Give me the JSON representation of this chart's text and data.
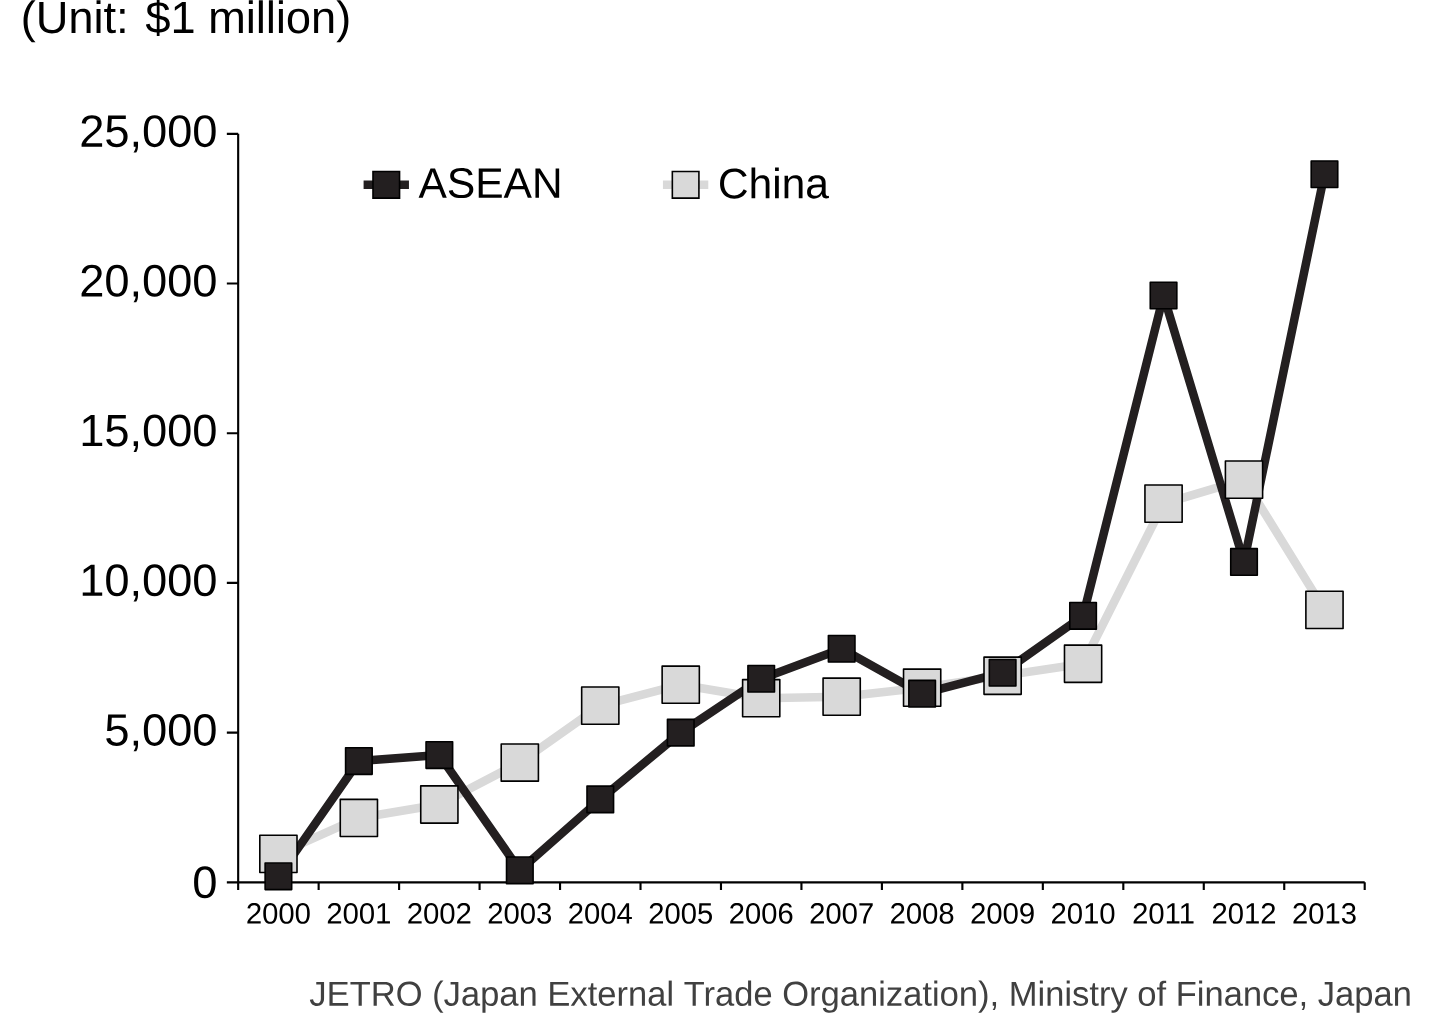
{
  "chart_data": {
    "type": "line",
    "ylabel": "(Unit: $1 million)",
    "categories": [
      "2000",
      "2001",
      "2002",
      "2003",
      "2004",
      "2005",
      "2006",
      "2007",
      "2008",
      "2009",
      "2010",
      "2011",
      "2012",
      "2013"
    ],
    "series": [
      {
        "name": "ASEAN",
        "color": "#231f20",
        "values": [
          200,
          4050,
          4250,
          400,
          2770,
          5000,
          6800,
          7800,
          6300,
          7000,
          8900,
          19600,
          10700,
          23650
        ]
      },
      {
        "name": "China",
        "color": "#d9d9d9",
        "values": [
          950,
          2150,
          2600,
          4000,
          5900,
          6600,
          6150,
          6200,
          6500,
          6900,
          7300,
          12650,
          13450,
          9100
        ]
      }
    ],
    "ylim": [
      0,
      25000
    ],
    "yticks": [
      0,
      {
        "value": 5000,
        "label": "5,000"
      },
      {
        "value": 10000,
        "label": "10,000"
      },
      {
        "value": 15000,
        "label": "15,000"
      },
      {
        "value": 20000,
        "label": "20,000"
      },
      {
        "value": 25000,
        "label": "25,000"
      }
    ],
    "grid": false,
    "legend": "top left",
    "marker": "square",
    "line_style": "solid",
    "annotations": [
      "JETRO (Japan External Trade Organization), Ministry of Finance, Japan"
    ]
  }
}
